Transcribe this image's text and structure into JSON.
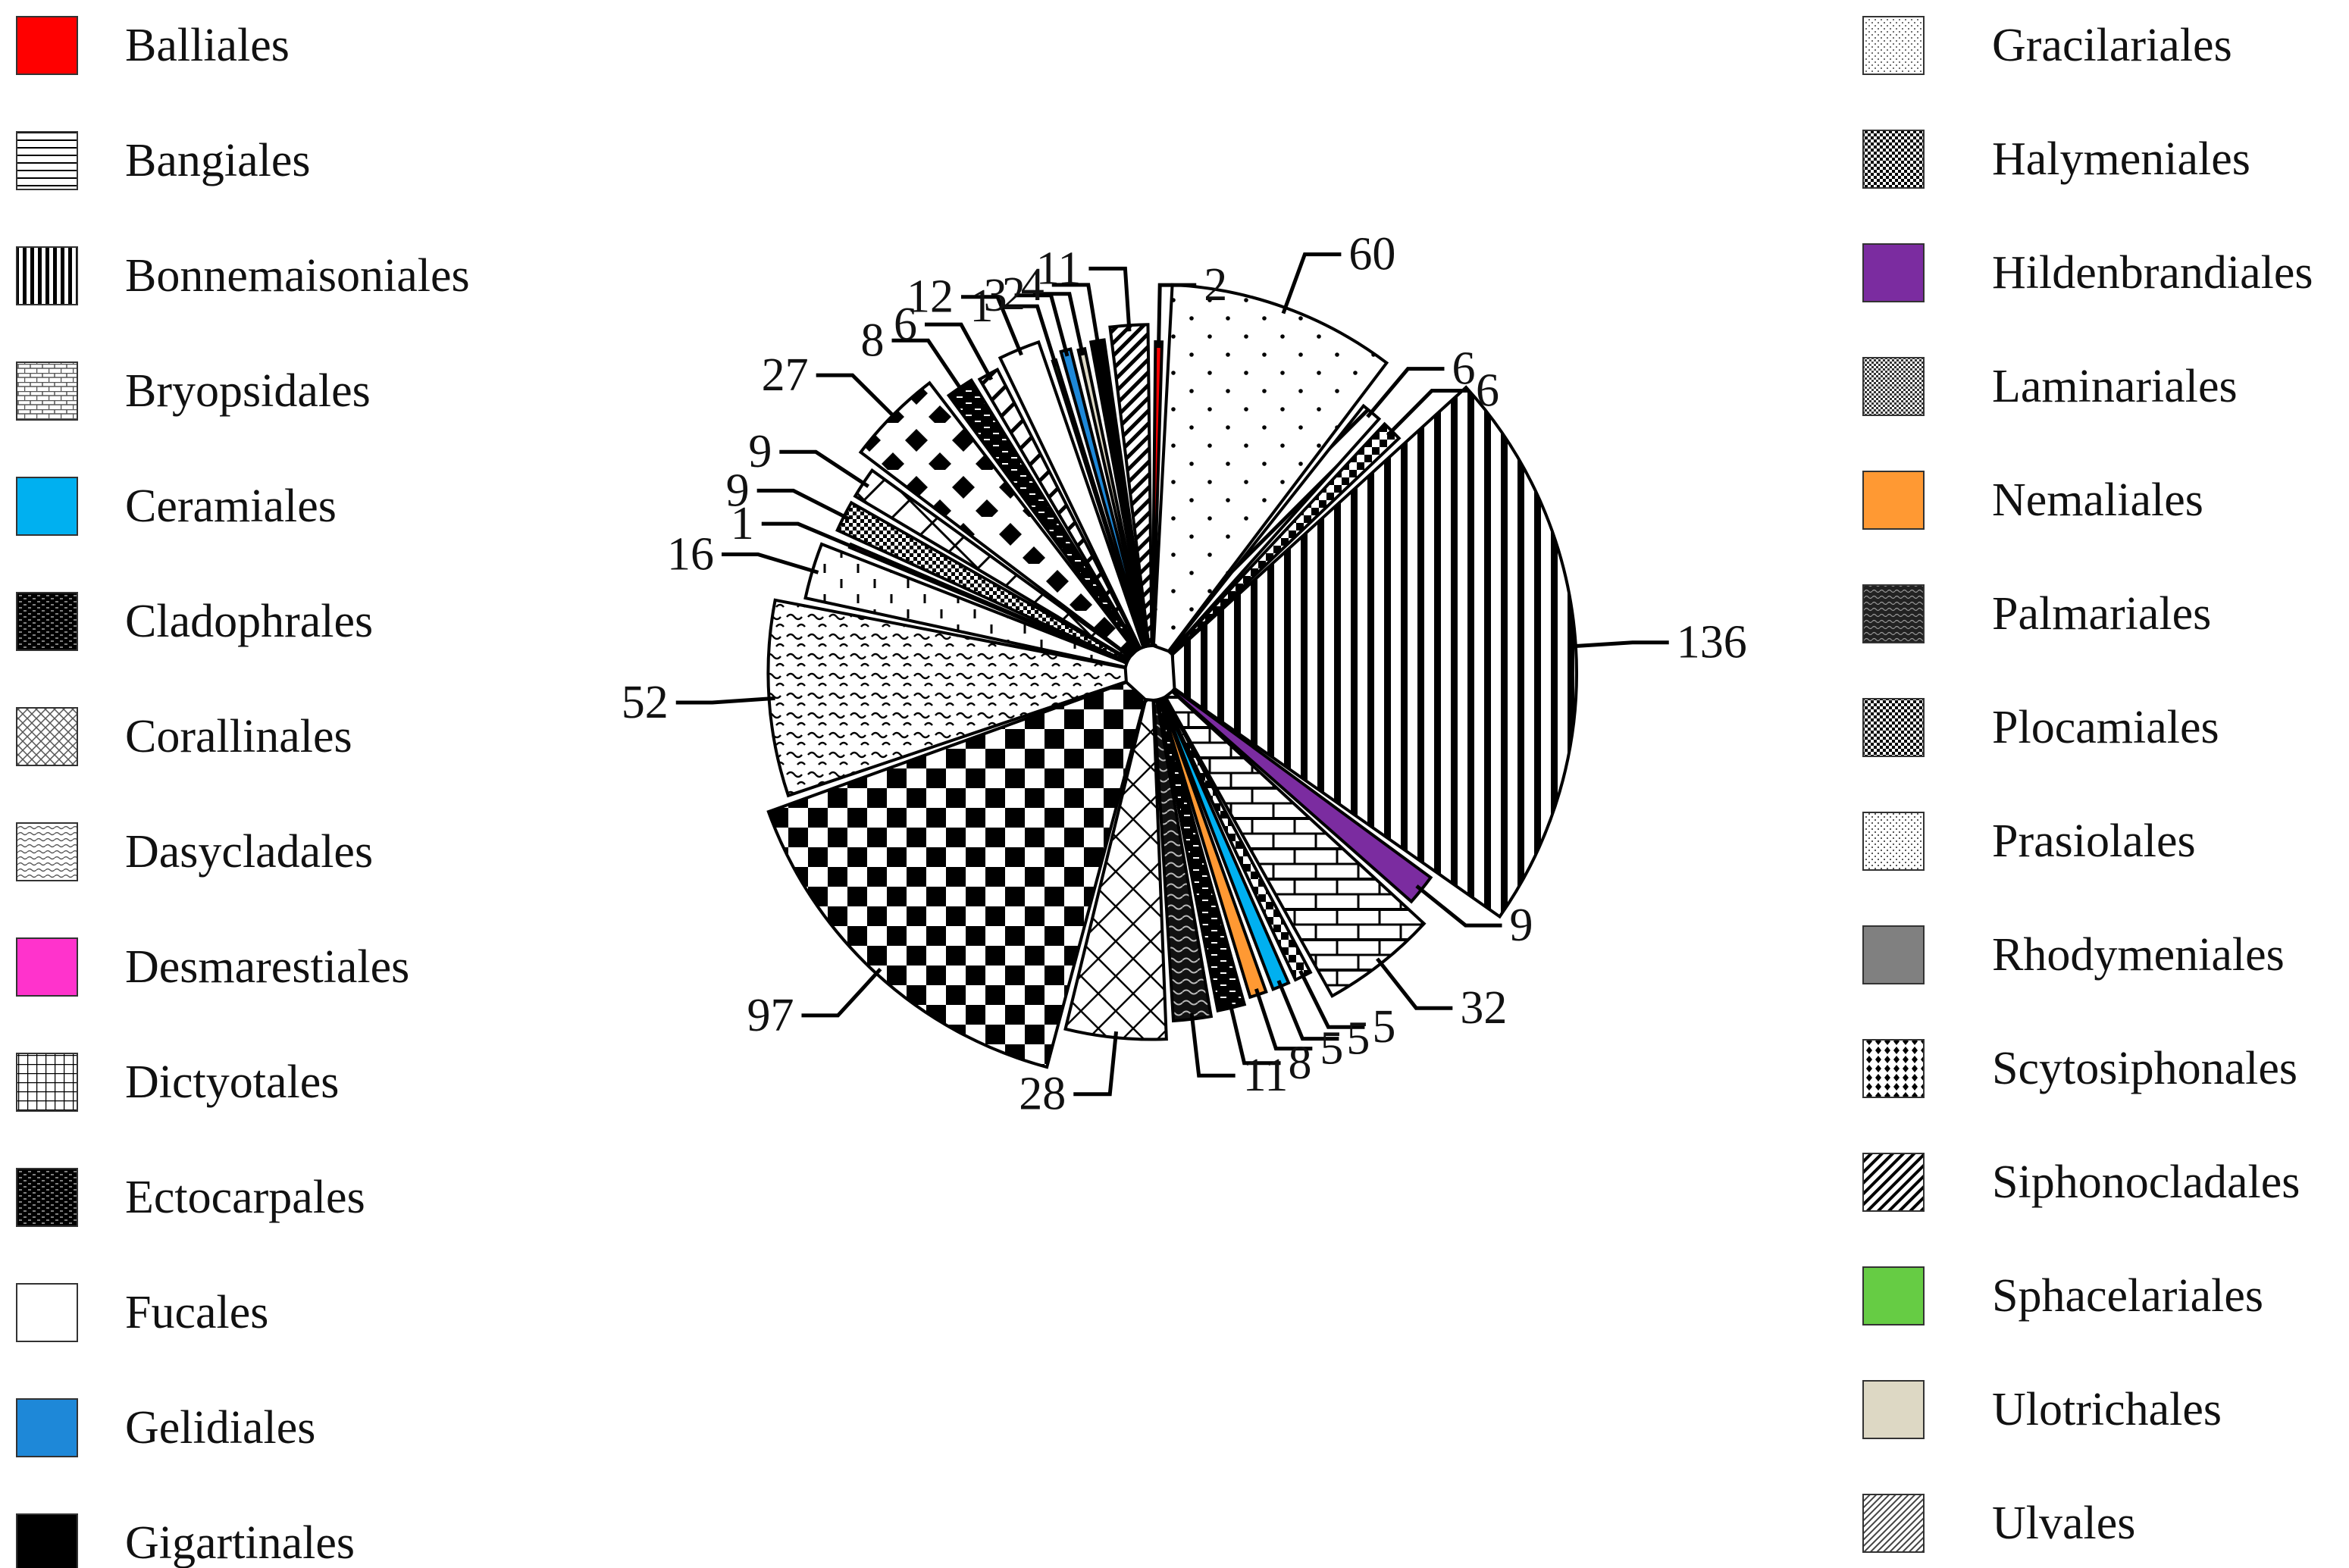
{
  "chart_data": {
    "type": "pie",
    "title": "",
    "legend_position": "left-and-right",
    "slices": [
      {
        "label": "Balliales",
        "value": 2,
        "color": "#ff0000",
        "pattern": "solid"
      },
      {
        "label": "Gracilariales",
        "value": 60,
        "color": "#ffffff",
        "pattern": "dots"
      },
      {
        "label": "Siphonocladales",
        "value": 6,
        "color": "#ffffff",
        "pattern": "diag"
      },
      {
        "label": "Plocamiales",
        "value": 6,
        "color": "#ffffff",
        "pattern": "checker-small"
      },
      {
        "label": "Bonnemaisoniales",
        "value": 136,
        "color": "#ffffff",
        "pattern": "vlines"
      },
      {
        "label": "Hildenbrandiales",
        "value": 9,
        "color": "#7b2ca0",
        "pattern": "solid"
      },
      {
        "label": "Bryopsidales",
        "value": 32,
        "color": "#ffffff",
        "pattern": "bricks"
      },
      {
        "label": "Plocamiales",
        "value": 5,
        "color": "#ffffff",
        "pattern": "checker-small"
      },
      {
        "label": "Ceramiales",
        "value": 5,
        "color": "#00b0f0",
        "pattern": "solid"
      },
      {
        "label": "Nemaliales",
        "value": 5,
        "color": "#ff9933",
        "pattern": "solid"
      },
      {
        "label": "Cladophrales",
        "value": 8,
        "color": "#ffffff",
        "pattern": "dark-bricks"
      },
      {
        "label": "Palmariales",
        "value": 11,
        "color": "#ffffff",
        "pattern": "dark-wave"
      },
      {
        "label": "Corallinales",
        "value": 28,
        "color": "#ffffff",
        "pattern": "crosshatch"
      },
      {
        "label": "Halymeniales",
        "value": 97,
        "color": "#ffffff",
        "pattern": "checker-large"
      },
      {
        "label": "Dasycladales",
        "value": 52,
        "color": "#ffffff",
        "pattern": "waves"
      },
      {
        "label": "Prasiolales",
        "value": 16,
        "color": "#ffffff",
        "pattern": "dashes"
      },
      {
        "label": "Desmarestiales",
        "value": 1,
        "color": "#ff33cc",
        "pattern": "solid"
      },
      {
        "label": "Laminariales",
        "value": 9,
        "color": "#ffffff",
        "pattern": "fine-check"
      },
      {
        "label": "Dictyotales",
        "value": 9,
        "color": "#ffffff",
        "pattern": "grid"
      },
      {
        "label": "Scytosiphonales",
        "value": 27,
        "color": "#ffffff",
        "pattern": "diamonds"
      },
      {
        "label": "Ectocarpales",
        "value": 8,
        "color": "#ffffff",
        "pattern": "dark-bricks"
      },
      {
        "label": "Siphonocladales",
        "value": 6,
        "color": "#ffffff",
        "pattern": "diag"
      },
      {
        "label": "Fucales",
        "value": 12,
        "color": "#ffffff",
        "pattern": "solid"
      },
      {
        "label": "Sphacelariales",
        "value": 1,
        "color": "#66cc44",
        "pattern": "solid"
      },
      {
        "label": "Gelidiales",
        "value": 3,
        "color": "#1e88d8",
        "pattern": "solid"
      },
      {
        "label": "Ulotrichales",
        "value": 2,
        "color": "#ddd8c4",
        "pattern": "solid"
      },
      {
        "label": "Gigartinales",
        "value": 4,
        "color": "#000000",
        "pattern": "solid"
      },
      {
        "label": "Ulvales",
        "value": 11,
        "color": "#ffffff",
        "pattern": "diag-dense"
      }
    ],
    "legend_left": [
      {
        "label": "Balliales",
        "color": "#ff0000",
        "pattern": "solid"
      },
      {
        "label": "Bangiales",
        "color": "#ffffff",
        "pattern": "hlines"
      },
      {
        "label": "Bonnemaisoniales",
        "color": "#ffffff",
        "pattern": "vlines"
      },
      {
        "label": "Bryopsidales",
        "color": "#ffffff",
        "pattern": "bricks"
      },
      {
        "label": "Ceramiales",
        "color": "#00b0f0",
        "pattern": "solid"
      },
      {
        "label": "Cladophrales",
        "color": "#ffffff",
        "pattern": "dark-bricks"
      },
      {
        "label": "Corallinales",
        "color": "#ffffff",
        "pattern": "crosshatch"
      },
      {
        "label": "Dasycladales",
        "color": "#ffffff",
        "pattern": "waves"
      },
      {
        "label": "Desmarestiales",
        "color": "#ff33cc",
        "pattern": "solid"
      },
      {
        "label": "Dictyotales",
        "color": "#ffffff",
        "pattern": "grid"
      },
      {
        "label": "Ectocarpales",
        "color": "#ffffff",
        "pattern": "dark-bricks"
      },
      {
        "label": "Fucales",
        "color": "#ffffff",
        "pattern": "solid"
      },
      {
        "label": "Gelidiales",
        "color": "#1e88d8",
        "pattern": "solid"
      },
      {
        "label": "Gigartinales",
        "color": "#000000",
        "pattern": "solid"
      }
    ],
    "legend_right": [
      {
        "label": "Gracilariales",
        "color": "#ffffff",
        "pattern": "dots"
      },
      {
        "label": "Halymeniales",
        "color": "#ffffff",
        "pattern": "checker-large"
      },
      {
        "label": "Hildenbrandiales",
        "color": "#7b2ca0",
        "pattern": "solid"
      },
      {
        "label": "Laminariales",
        "color": "#ffffff",
        "pattern": "fine-check"
      },
      {
        "label": "Nemaliales",
        "color": "#ff9933",
        "pattern": "solid"
      },
      {
        "label": "Palmariales",
        "color": "#ffffff",
        "pattern": "dark-wave"
      },
      {
        "label": "Plocamiales",
        "color": "#ffffff",
        "pattern": "checker-small"
      },
      {
        "label": "Prasiolales",
        "color": "#ffffff",
        "pattern": "dashes"
      },
      {
        "label": "Rhodymeniales",
        "color": "#808080",
        "pattern": "solid"
      },
      {
        "label": "Scytosiphonales",
        "color": "#ffffff",
        "pattern": "diamonds"
      },
      {
        "label": "Siphonocladales",
        "color": "#ffffff",
        "pattern": "diag"
      },
      {
        "label": "Sphacelariales",
        "color": "#66cc44",
        "pattern": "solid"
      },
      {
        "label": "Ulotrichales",
        "color": "#ddd8c4",
        "pattern": "solid"
      },
      {
        "label": "Ulvales",
        "color": "#ffffff",
        "pattern": "diag-dense"
      }
    ]
  }
}
